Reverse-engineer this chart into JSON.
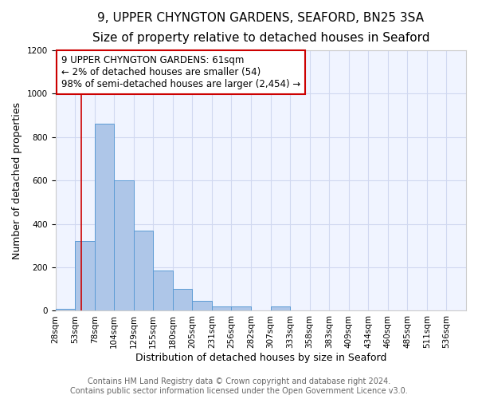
{
  "title": "9, UPPER CHYNGTON GARDENS, SEAFORD, BN25 3SA",
  "subtitle": "Size of property relative to detached houses in Seaford",
  "xlabel": "Distribution of detached houses by size in Seaford",
  "ylabel": "Number of detached properties",
  "bin_labels": [
    "28sqm",
    "53sqm",
    "78sqm",
    "104sqm",
    "129sqm",
    "155sqm",
    "180sqm",
    "205sqm",
    "231sqm",
    "256sqm",
    "282sqm",
    "307sqm",
    "333sqm",
    "358sqm",
    "383sqm",
    "409sqm",
    "434sqm",
    "460sqm",
    "485sqm",
    "511sqm",
    "536sqm"
  ],
  "bar_values": [
    10,
    320,
    860,
    600,
    370,
    185,
    100,
    45,
    20,
    20,
    0,
    20,
    0,
    0,
    0,
    0,
    0,
    0,
    0,
    0,
    0
  ],
  "bar_color": "#aec6e8",
  "bar_edge_color": "#5b9bd5",
  "property_line_x": 61,
  "property_line_label": "9 UPPER CHYNGTON GARDENS: 61sqm",
  "annotation_line1": "← 2% of detached houses are smaller (54)",
  "annotation_line2": "98% of semi-detached houses are larger (2,454) →",
  "annotation_box_color": "#ffffff",
  "annotation_box_edge_color": "#cc0000",
  "vline_color": "#cc0000",
  "footer1": "Contains HM Land Registry data © Crown copyright and database right 2024.",
  "footer2": "Contains public sector information licensed under the Open Government Licence v3.0.",
  "ylim": [
    0,
    1200
  ],
  "xlim_start": 28,
  "bin_width": 25,
  "num_bins": 21,
  "title_fontsize": 11,
  "subtitle_fontsize": 9.5,
  "axis_label_fontsize": 9,
  "tick_fontsize": 7.5,
  "annotation_fontsize": 8.5,
  "footer_fontsize": 7,
  "grid_color": "#d0d8f0",
  "spine_color": "#cccccc"
}
